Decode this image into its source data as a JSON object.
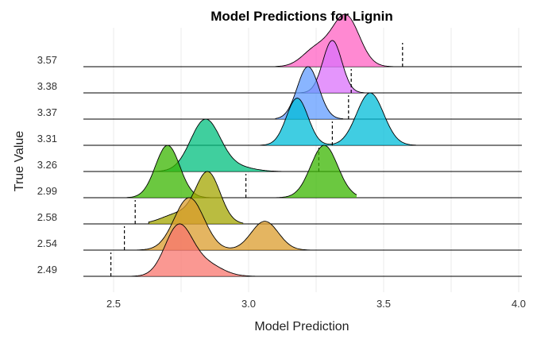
{
  "chart_data": {
    "type": "ridgeline",
    "title": "Model Predictions for Lignin",
    "xlabel": "Model Prediction",
    "ylabel": "True Value",
    "xlim": [
      2.4,
      4.0
    ],
    "x_ticks": [
      "2.5",
      "3.0",
      "3.5",
      "4.0"
    ],
    "x_tick_values": [
      2.5,
      3.0,
      3.5,
      4.0
    ],
    "grid": true,
    "legend": "none",
    "series": [
      {
        "label": "2.49",
        "true_value": 2.49,
        "color": "#F8766D",
        "range": [
          2.55,
          3.05
        ],
        "peaks": [
          {
            "mu": 2.74,
            "sd": 0.05,
            "h": 1.0
          },
          {
            "mu": 2.84,
            "sd": 0.06,
            "h": 0.25
          }
        ]
      },
      {
        "label": "2.54",
        "true_value": 2.54,
        "color": "#DB9C2C",
        "range": [
          2.55,
          3.25
        ],
        "peaks": [
          {
            "mu": 2.78,
            "sd": 0.055,
            "h": 1.0
          },
          {
            "mu": 3.06,
            "sd": 0.05,
            "h": 0.55
          }
        ]
      },
      {
        "label": "2.58",
        "true_value": 2.58,
        "color": "#A3A500",
        "range": [
          2.63,
          2.98
        ],
        "peaks": [
          {
            "mu": 2.85,
            "sd": 0.045,
            "h": 1.0
          },
          {
            "mu": 2.74,
            "sd": 0.06,
            "h": 0.2
          }
        ]
      },
      {
        "label": "2.99",
        "true_value": 2.99,
        "color": "#39B600",
        "range": [
          2.42,
          3.4
        ],
        "peaks": [
          {
            "mu": 2.7,
            "sd": 0.045,
            "h": 1.0
          },
          {
            "mu": 3.28,
            "sd": 0.05,
            "h": 1.0
          }
        ]
      },
      {
        "label": "3.26",
        "true_value": 3.26,
        "color": "#00BF7D",
        "range": [
          2.58,
          3.2
        ],
        "peaks": [
          {
            "mu": 2.84,
            "sd": 0.055,
            "h": 1.0
          },
          {
            "mu": 2.96,
            "sd": 0.06,
            "h": 0.08
          }
        ]
      },
      {
        "label": "3.31",
        "true_value": 3.31,
        "color": "#00BCD8",
        "range": [
          3.03,
          3.62
        ],
        "peaks": [
          {
            "mu": 3.18,
            "sd": 0.04,
            "h": 0.9
          },
          {
            "mu": 3.45,
            "sd": 0.05,
            "h": 1.0
          }
        ]
      },
      {
        "label": "3.37",
        "true_value": 3.37,
        "color": "#619CFF",
        "range": [
          3.1,
          3.35
        ],
        "peaks": [
          {
            "mu": 3.22,
            "sd": 0.04,
            "h": 1.0
          }
        ]
      },
      {
        "label": "3.38",
        "true_value": 3.38,
        "color": "#DB72FB",
        "range": [
          3.19,
          3.43
        ],
        "peaks": [
          {
            "mu": 3.31,
            "sd": 0.035,
            "h": 1.0
          }
        ]
      },
      {
        "label": "3.57",
        "true_value": 3.57,
        "color": "#FF61C3",
        "range": [
          3.1,
          3.65
        ],
        "peaks": [
          {
            "mu": 3.36,
            "sd": 0.05,
            "h": 1.0
          },
          {
            "mu": 3.25,
            "sd": 0.05,
            "h": 0.35
          }
        ]
      }
    ]
  }
}
